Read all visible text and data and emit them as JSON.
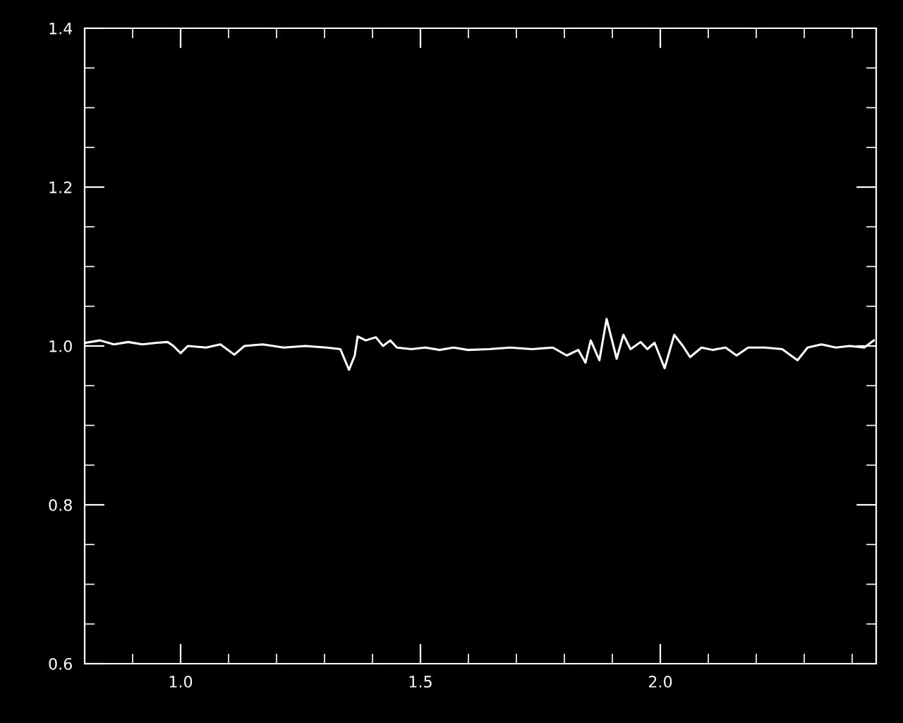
{
  "chart_data": {
    "type": "line",
    "x": [
      0.802,
      0.832,
      0.861,
      0.891,
      0.92,
      0.95,
      0.973,
      0.985,
      1.0,
      1.015,
      1.053,
      1.083,
      1.112,
      1.133,
      1.171,
      1.215,
      1.26,
      1.304,
      1.333,
      1.351,
      1.363,
      1.369,
      1.386,
      1.407,
      1.422,
      1.437,
      1.451,
      1.481,
      1.51,
      1.54,
      1.569,
      1.599,
      1.643,
      1.687,
      1.732,
      1.776,
      1.805,
      1.829,
      1.844,
      1.855,
      1.873,
      1.888,
      1.909,
      1.923,
      1.938,
      1.959,
      1.973,
      1.988,
      2.009,
      2.029,
      2.047,
      2.062,
      2.086,
      2.109,
      2.136,
      2.159,
      2.183,
      2.218,
      2.254,
      2.286,
      2.307,
      2.336,
      2.366,
      2.395,
      2.425,
      2.445
    ],
    "series": [
      {
        "color": "#ffffff",
        "values": [
          1.004,
          1.007,
          1.002,
          1.005,
          1.002,
          1.004,
          1.005,
          1.0,
          0.991,
          1.0,
          0.998,
          1.002,
          0.989,
          1.0,
          1.002,
          0.998,
          1.0,
          0.998,
          0.996,
          0.97,
          0.988,
          1.012,
          1.007,
          1.011,
          1.0,
          1.007,
          0.998,
          0.996,
          0.998,
          0.995,
          0.998,
          0.995,
          0.996,
          0.998,
          0.996,
          0.998,
          0.988,
          0.995,
          0.979,
          1.007,
          0.982,
          1.034,
          0.984,
          1.014,
          0.996,
          1.005,
          0.996,
          1.004,
          0.972,
          1.014,
          1.0,
          0.986,
          0.998,
          0.995,
          0.998,
          0.988,
          0.998,
          0.998,
          0.996,
          0.982,
          0.998,
          1.002,
          0.998,
          1.0,
          0.998,
          1.007
        ]
      }
    ],
    "xlim": [
      0.8,
      2.45
    ],
    "ylim": [
      0.6,
      1.4
    ],
    "xticks": [
      {
        "value": 0.9,
        "label": null
      },
      {
        "value": 1.0,
        "label": "1.0"
      },
      {
        "value": 1.1,
        "label": null
      },
      {
        "value": 1.2,
        "label": null
      },
      {
        "value": 1.3,
        "label": null
      },
      {
        "value": 1.4,
        "label": null
      },
      {
        "value": 1.5,
        "label": "1.5"
      },
      {
        "value": 1.6,
        "label": null
      },
      {
        "value": 1.7,
        "label": null
      },
      {
        "value": 1.8,
        "label": null
      },
      {
        "value": 1.9,
        "label": null
      },
      {
        "value": 2.0,
        "label": "2.0"
      },
      {
        "value": 2.1,
        "label": null
      },
      {
        "value": 2.2,
        "label": null
      },
      {
        "value": 2.3,
        "label": null
      },
      {
        "value": 2.4,
        "label": null
      }
    ],
    "yticks": [
      {
        "value": 0.6,
        "label": "0.6"
      },
      {
        "value": 0.65,
        "label": null
      },
      {
        "value": 0.7,
        "label": null
      },
      {
        "value": 0.75,
        "label": null
      },
      {
        "value": 0.8,
        "label": "0.8"
      },
      {
        "value": 0.85,
        "label": null
      },
      {
        "value": 0.9,
        "label": null
      },
      {
        "value": 0.95,
        "label": null
      },
      {
        "value": 1.0,
        "label": "1.0"
      },
      {
        "value": 1.05,
        "label": null
      },
      {
        "value": 1.1,
        "label": null
      },
      {
        "value": 1.15,
        "label": null
      },
      {
        "value": 1.2,
        "label": "1.2"
      },
      {
        "value": 1.25,
        "label": null
      },
      {
        "value": 1.3,
        "label": null
      },
      {
        "value": 1.35,
        "label": null
      },
      {
        "value": 1.4,
        "label": "1.4"
      }
    ],
    "grid": false,
    "marker": "none",
    "line_style": "solid"
  }
}
